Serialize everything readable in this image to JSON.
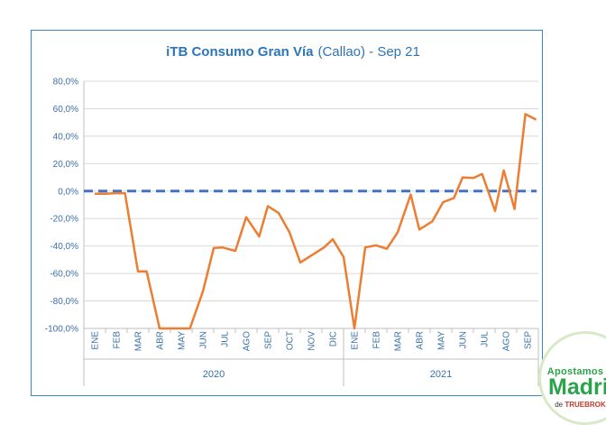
{
  "chart_data": {
    "type": "line",
    "title_main": "iTB Consumo Gran Vía",
    "title_sub": "(Callao) - Sep 21",
    "ylim": [
      -100,
      80
    ],
    "yticks": [
      "80,0%",
      "60,0%",
      "40,0%",
      "20,0%",
      "0,0%",
      "-20,0%",
      "-40,0%",
      "-60,0%",
      "-80,0%",
      "-100,0%"
    ],
    "ytick_values": [
      80,
      60,
      40,
      20,
      0,
      -20,
      -40,
      -60,
      -80,
      -100
    ],
    "month_labels": [
      "ENE",
      "FEB",
      "MAR",
      "ABR",
      "MAY",
      "JUN",
      "JUL",
      "AGO",
      "SEP",
      "OCT",
      "NOV",
      "DIC",
      "ENE",
      "FEB",
      "MAR",
      "ABR",
      "MAY",
      "JUN",
      "JUL",
      "AGO",
      "SEP"
    ],
    "years": [
      {
        "label": "2020",
        "start": 0,
        "end": 12
      },
      {
        "label": "2021",
        "start": 12,
        "end": 21
      }
    ],
    "reference_line": 0,
    "series": [
      {
        "name": "iTB Consumo Gran Vía",
        "color": "#ed7d31",
        "points": [
          [
            0.0,
            -2
          ],
          [
            0.5,
            -2
          ],
          [
            1.0,
            -1.5
          ],
          [
            1.4,
            -1.5
          ],
          [
            2.0,
            -58.5
          ],
          [
            2.4,
            -58.5
          ],
          [
            3.0,
            -100
          ],
          [
            3.5,
            -100
          ],
          [
            4.0,
            -100
          ],
          [
            4.4,
            -100
          ],
          [
            5.0,
            -73
          ],
          [
            5.5,
            -41.5
          ],
          [
            5.9,
            -41
          ],
          [
            6.5,
            -43.5
          ],
          [
            7.0,
            -19
          ],
          [
            7.6,
            -33
          ],
          [
            8.0,
            -11
          ],
          [
            8.5,
            -16
          ],
          [
            9.0,
            -30
          ],
          [
            9.5,
            -52
          ],
          [
            10.0,
            -47
          ],
          [
            10.6,
            -41
          ],
          [
            11.0,
            -35
          ],
          [
            11.5,
            -48
          ],
          [
            12.0,
            -100
          ],
          [
            12.5,
            -41
          ],
          [
            13.0,
            -39.5
          ],
          [
            13.5,
            -42
          ],
          [
            14.0,
            -30
          ],
          [
            14.6,
            -2.5
          ],
          [
            15.0,
            -28
          ],
          [
            15.6,
            -22
          ],
          [
            16.1,
            -8
          ],
          [
            16.6,
            -5
          ],
          [
            17.0,
            10
          ],
          [
            17.5,
            9.5
          ],
          [
            17.9,
            12.5
          ],
          [
            18.5,
            -14.5
          ],
          [
            18.9,
            15
          ],
          [
            19.4,
            -13
          ],
          [
            19.9,
            56
          ],
          [
            20.4,
            52
          ]
        ]
      }
    ]
  },
  "badge": {
    "line1": "Apostamos por",
    "line2": "Madrid",
    "line3_prefix": "de",
    "line3_brand": "TRUEBROKER"
  }
}
